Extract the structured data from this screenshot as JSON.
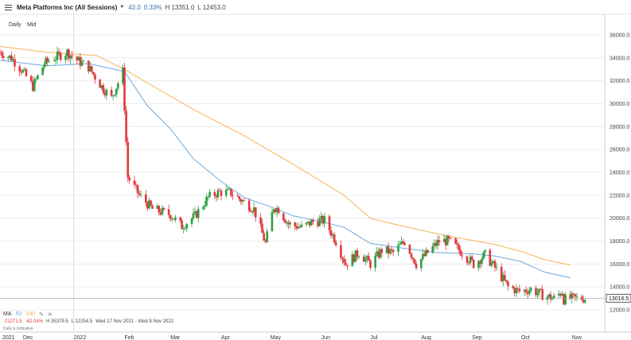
{
  "header": {
    "title": "Meta Platforms Inc (All Sessions)",
    "last": "43.0",
    "change_pct": "0.33%",
    "high": "H 13351.0",
    "low": "L 12453.0"
  },
  "intervals": [
    "Daily",
    "Mid"
  ],
  "indicators": {
    "label": "MA",
    "ma1": "50",
    "ma2": "100",
    "ma1_color": "#6aa9e0",
    "ma2_color": "#f5b455"
  },
  "stats": {
    "change": "-21271.5",
    "change_pct": "-62.04%",
    "high": "H 35379.5",
    "low": "L 12254.5",
    "range": "Wed 17 Nov 2021 - Wed 9 Nov 2022"
  },
  "note": "Data is indicative",
  "chart_data": {
    "type": "candlestick",
    "price_label": "13016.5",
    "colors": {
      "up": "#2ea043",
      "down": "#e0393e",
      "ma50": "#6aa9e0",
      "ma100": "#f5b455"
    },
    "grid": true,
    "ylim": [
      11200,
      36600
    ],
    "y_ticks": [
      12000,
      14000,
      16000,
      18000,
      20000,
      22000,
      24000,
      26000,
      28000,
      30000,
      32000,
      34000,
      36000
    ],
    "y_tick_labels": [
      "12000.0",
      "14000.0",
      "16000.0",
      "18000.0",
      "20000.0",
      "22000.0",
      "24000.0",
      "26000.0",
      "28000.0",
      "30000.0",
      "32000.0",
      "34000.0",
      "36000.0"
    ],
    "x_ticks": [
      {
        "label": "2021",
        "date": "2021-11-17"
      },
      {
        "label": "Dec",
        "date": "2021-12-01"
      },
      {
        "label": "2022",
        "date": "2022-01-01"
      },
      {
        "label": "Feb",
        "date": "2022-02-01"
      },
      {
        "label": "Mar",
        "date": "2022-03-01"
      },
      {
        "label": "Apr",
        "date": "2022-04-01"
      },
      {
        "label": "May",
        "date": "2022-05-01"
      },
      {
        "label": "Jun",
        "date": "2022-06-01"
      },
      {
        "label": "Jul",
        "date": "2022-07-01"
      },
      {
        "label": "Aug",
        "date": "2022-08-01"
      },
      {
        "label": "Sep",
        "date": "2022-09-01"
      },
      {
        "label": "Oct",
        "date": "2022-10-01"
      },
      {
        "label": "Nov",
        "date": "2022-11-01"
      }
    ],
    "x_range": [
      "2021-11-17",
      "2022-11-21"
    ],
    "close_path": [
      [
        "2021-11-17",
        34500
      ],
      [
        "2021-11-24",
        34000
      ],
      [
        "2021-11-30",
        33000
      ],
      [
        "2021-12-07",
        31500
      ],
      [
        "2021-12-14",
        33500
      ],
      [
        "2021-12-20",
        34000
      ],
      [
        "2021-12-28",
        34500
      ],
      [
        "2022-01-03",
        33800
      ],
      [
        "2022-01-10",
        33200
      ],
      [
        "2022-01-18",
        31500
      ],
      [
        "2022-01-24",
        30500
      ],
      [
        "2022-01-31",
        32800
      ],
      [
        "2022-02-03",
        23600
      ],
      [
        "2022-02-10",
        22000
      ],
      [
        "2022-02-18",
        20800
      ],
      [
        "2022-03-01",
        20300
      ],
      [
        "2022-03-08",
        19300
      ],
      [
        "2022-03-16",
        20200
      ],
      [
        "2022-03-24",
        21800
      ],
      [
        "2022-03-31",
        22300
      ],
      [
        "2022-04-07",
        22200
      ],
      [
        "2022-04-14",
        21500
      ],
      [
        "2022-04-21",
        20800
      ],
      [
        "2022-04-28",
        17800
      ],
      [
        "2022-05-03",
        21000
      ],
      [
        "2022-05-06",
        20800
      ],
      [
        "2022-05-12",
        19500
      ],
      [
        "2022-05-20",
        19200
      ],
      [
        "2022-05-27",
        19700
      ],
      [
        "2022-06-03",
        19800
      ],
      [
        "2022-06-10",
        18000
      ],
      [
        "2022-06-16",
        16000
      ],
      [
        "2022-06-24",
        17000
      ],
      [
        "2022-07-01",
        16000
      ],
      [
        "2022-07-08",
        17200
      ],
      [
        "2022-07-15",
        17000
      ],
      [
        "2022-07-22",
        18000
      ],
      [
        "2022-07-29",
        16000
      ],
      [
        "2022-08-05",
        17000
      ],
      [
        "2022-08-12",
        18000
      ],
      [
        "2022-08-18",
        18000
      ],
      [
        "2022-08-26",
        17000
      ],
      [
        "2022-09-02",
        16000
      ],
      [
        "2022-09-09",
        16800
      ],
      [
        "2022-09-16",
        15500
      ],
      [
        "2022-09-23",
        14000
      ],
      [
        "2022-09-30",
        13600
      ],
      [
        "2022-10-07",
        13800
      ],
      [
        "2022-10-14",
        13300
      ],
      [
        "2022-10-21",
        13000
      ],
      [
        "2022-10-26",
        13600
      ],
      [
        "2022-10-27",
        12900
      ],
      [
        "2022-10-31",
        13000
      ]
    ],
    "ma50_path": [
      [
        "2021-11-17",
        33800
      ],
      [
        "2021-12-15",
        33300
      ],
      [
        "2022-01-10",
        33500
      ],
      [
        "2022-02-01",
        32800
      ],
      [
        "2022-02-15",
        29800
      ],
      [
        "2022-03-01",
        27800
      ],
      [
        "2022-03-15",
        25200
      ],
      [
        "2022-04-01",
        23200
      ],
      [
        "2022-04-15",
        21800
      ],
      [
        "2022-05-01",
        21000
      ],
      [
        "2022-05-15",
        20200
      ],
      [
        "2022-06-01",
        19700
      ],
      [
        "2022-06-15",
        19200
      ],
      [
        "2022-07-01",
        17800
      ],
      [
        "2022-07-20",
        17400
      ],
      [
        "2022-08-10",
        17000
      ],
      [
        "2022-09-01",
        16900
      ],
      [
        "2022-09-15",
        16700
      ],
      [
        "2022-10-01",
        16200
      ],
      [
        "2022-10-15",
        15300
      ],
      [
        "2022-10-31",
        14800
      ]
    ],
    "ma100_path": [
      [
        "2021-11-17",
        35000
      ],
      [
        "2021-12-15",
        34500
      ],
      [
        "2022-01-15",
        34200
      ],
      [
        "2022-02-01",
        33000
      ],
      [
        "2022-02-15",
        31800
      ],
      [
        "2022-03-15",
        29500
      ],
      [
        "2022-04-15",
        27200
      ],
      [
        "2022-05-15",
        24700
      ],
      [
        "2022-06-15",
        22000
      ],
      [
        "2022-07-01",
        20000
      ],
      [
        "2022-07-15",
        19500
      ],
      [
        "2022-08-15",
        18500
      ],
      [
        "2022-09-15",
        17700
      ],
      [
        "2022-10-01",
        17100
      ],
      [
        "2022-10-15",
        16400
      ],
      [
        "2022-10-31",
        15900
      ]
    ]
  }
}
